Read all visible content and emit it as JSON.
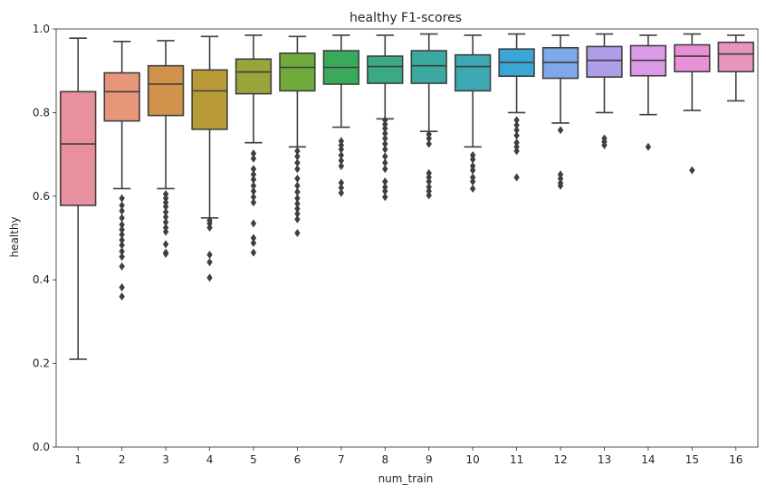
{
  "chart_data": {
    "type": "box",
    "title": "healthy F1-scores",
    "xlabel": "num_train",
    "ylabel": "healthy",
    "ylim": [
      0.0,
      1.0
    ],
    "yticks": [
      0.0,
      0.2,
      0.4,
      0.6,
      0.8,
      1.0
    ],
    "grid": false,
    "line_color": "#3f3f3f",
    "categories": [
      "1",
      "2",
      "3",
      "4",
      "5",
      "6",
      "7",
      "8",
      "9",
      "10",
      "11",
      "12",
      "13",
      "14",
      "15",
      "16"
    ],
    "boxes": [
      {
        "category": "1",
        "color": "#e8909e",
        "whislo": 0.21,
        "q1": 0.578,
        "med": 0.725,
        "q3": 0.85,
        "whishi": 0.978,
        "fliers": []
      },
      {
        "category": "2",
        "color": "#e8967a",
        "whislo": 0.618,
        "q1": 0.78,
        "med": 0.85,
        "q3": 0.895,
        "whishi": 0.97,
        "fliers": [
          0.595,
          0.578,
          0.565,
          0.548,
          0.532,
          0.52,
          0.508,
          0.495,
          0.483,
          0.468,
          0.455,
          0.432,
          0.382,
          0.36
        ]
      },
      {
        "category": "3",
        "color": "#d1924a",
        "whislo": 0.618,
        "q1": 0.793,
        "med": 0.868,
        "q3": 0.912,
        "whishi": 0.972,
        "fliers": [
          0.605,
          0.595,
          0.585,
          0.575,
          0.562,
          0.55,
          0.538,
          0.525,
          0.515,
          0.485,
          0.465,
          0.462
        ]
      },
      {
        "category": "4",
        "color": "#b89b36",
        "whislo": 0.548,
        "q1": 0.76,
        "med": 0.852,
        "q3": 0.902,
        "whishi": 0.982,
        "fliers": [
          0.542,
          0.535,
          0.525,
          0.46,
          0.442,
          0.405
        ]
      },
      {
        "category": "5",
        "color": "#9aa43a",
        "whislo": 0.728,
        "q1": 0.845,
        "med": 0.897,
        "q3": 0.928,
        "whishi": 0.985,
        "fliers": [
          0.702,
          0.69,
          0.665,
          0.652,
          0.64,
          0.625,
          0.612,
          0.598,
          0.585,
          0.535,
          0.5,
          0.488,
          0.465
        ]
      },
      {
        "category": "6",
        "color": "#6fab3c",
        "whislo": 0.718,
        "q1": 0.852,
        "med": 0.908,
        "q3": 0.942,
        "whishi": 0.982,
        "fliers": [
          0.708,
          0.695,
          0.68,
          0.665,
          0.642,
          0.625,
          0.61,
          0.595,
          0.582,
          0.57,
          0.558,
          0.545,
          0.512
        ]
      },
      {
        "category": "7",
        "color": "#3aaa5a",
        "whislo": 0.765,
        "q1": 0.868,
        "med": 0.908,
        "q3": 0.948,
        "whishi": 0.985,
        "fliers": [
          0.732,
          0.722,
          0.712,
          0.698,
          0.685,
          0.672,
          0.632,
          0.62,
          0.608
        ]
      },
      {
        "category": "8",
        "color": "#3aaa86",
        "whislo": 0.785,
        "q1": 0.87,
        "med": 0.91,
        "q3": 0.935,
        "whishi": 0.985,
        "fliers": [
          0.782,
          0.772,
          0.762,
          0.75,
          0.738,
          0.725,
          0.712,
          0.695,
          0.68,
          0.665,
          0.635,
          0.622,
          0.612,
          0.598
        ]
      },
      {
        "category": "9",
        "color": "#3aa99f",
        "whislo": 0.755,
        "q1": 0.87,
        "med": 0.912,
        "q3": 0.948,
        "whishi": 0.988,
        "fliers": [
          0.748,
          0.738,
          0.725,
          0.655,
          0.645,
          0.635,
          0.622,
          0.612,
          0.602
        ]
      },
      {
        "category": "10",
        "color": "#3ca8b3",
        "whislo": 0.718,
        "q1": 0.852,
        "med": 0.91,
        "q3": 0.938,
        "whishi": 0.985,
        "fliers": [
          0.698,
          0.688,
          0.672,
          0.662,
          0.645,
          0.635,
          0.618
        ]
      },
      {
        "category": "11",
        "color": "#3aa6d6",
        "whislo": 0.8,
        "q1": 0.887,
        "med": 0.92,
        "q3": 0.952,
        "whishi": 0.988,
        "fliers": [
          0.782,
          0.77,
          0.758,
          0.745,
          0.728,
          0.718,
          0.708,
          0.645
        ]
      },
      {
        "category": "12",
        "color": "#7fa8e8",
        "whislo": 0.775,
        "q1": 0.882,
        "med": 0.92,
        "q3": 0.955,
        "whishi": 0.985,
        "fliers": [
          0.758,
          0.652,
          0.642,
          0.632,
          0.625
        ]
      },
      {
        "category": "13",
        "color": "#ae9ee8",
        "whislo": 0.8,
        "q1": 0.885,
        "med": 0.925,
        "q3": 0.958,
        "whishi": 0.988,
        "fliers": [
          0.738,
          0.73,
          0.722
        ]
      },
      {
        "category": "14",
        "color": "#d99be8",
        "whislo": 0.795,
        "q1": 0.888,
        "med": 0.925,
        "q3": 0.96,
        "whishi": 0.985,
        "fliers": [
          0.718
        ]
      },
      {
        "category": "15",
        "color": "#e88fd6",
        "whislo": 0.805,
        "q1": 0.898,
        "med": 0.935,
        "q3": 0.962,
        "whishi": 0.988,
        "fliers": [
          0.662
        ]
      },
      {
        "category": "16",
        "color": "#e895bd",
        "whislo": 0.828,
        "q1": 0.898,
        "med": 0.94,
        "q3": 0.968,
        "whishi": 0.985,
        "fliers": []
      }
    ]
  }
}
